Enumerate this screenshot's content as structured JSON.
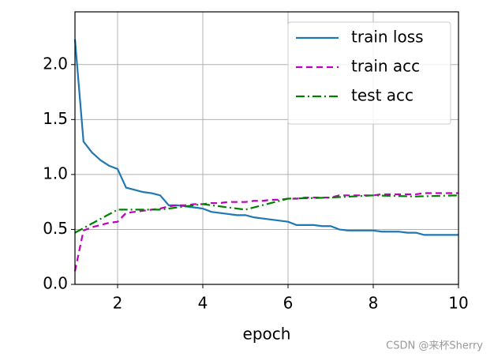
{
  "chart_data": {
    "type": "line",
    "xlabel": "epoch",
    "xlim": [
      1,
      10
    ],
    "ylim": [
      0,
      2.48
    ],
    "xticks": [
      2,
      4,
      6,
      8,
      10
    ],
    "yticks": [
      {
        "value": 0,
        "label": "0.0"
      },
      {
        "value": 0.5,
        "label": "0.5"
      },
      {
        "value": 1,
        "label": "1.0"
      },
      {
        "value": 1.5,
        "label": "1.5"
      },
      {
        "value": 2,
        "label": "2.0"
      }
    ],
    "grid": true,
    "legend": "upper right",
    "series": [
      {
        "name": "train loss",
        "color": "#1f77b4",
        "linestyle": "solid",
        "x": [
          1.0,
          1.2,
          1.4,
          1.6,
          1.8,
          2.0,
          2.2,
          2.4,
          2.6,
          2.8,
          3.0,
          3.2,
          3.4,
          3.6,
          3.8,
          4.0,
          4.2,
          4.4,
          4.6,
          4.8,
          5.0,
          5.2,
          5.4,
          5.6,
          5.8,
          6.0,
          6.2,
          6.4,
          6.6,
          6.8,
          7.0,
          7.2,
          7.4,
          7.6,
          7.8,
          8.0,
          8.2,
          8.4,
          8.6,
          8.8,
          9.0,
          9.2,
          9.4,
          9.6,
          9.8,
          10.0
        ],
        "values": [
          2.23,
          1.3,
          1.2,
          1.13,
          1.08,
          1.05,
          0.88,
          0.86,
          0.84,
          0.83,
          0.81,
          0.72,
          0.72,
          0.71,
          0.7,
          0.69,
          0.66,
          0.65,
          0.64,
          0.63,
          0.63,
          0.61,
          0.6,
          0.59,
          0.58,
          0.57,
          0.54,
          0.54,
          0.54,
          0.53,
          0.53,
          0.5,
          0.49,
          0.49,
          0.49,
          0.49,
          0.48,
          0.48,
          0.48,
          0.47,
          0.47,
          0.45,
          0.45,
          0.45,
          0.45,
          0.45
        ]
      },
      {
        "name": "train acc",
        "color": "#bf00bf",
        "linestyle": "dashed",
        "x": [
          1.0,
          1.2,
          1.4,
          1.6,
          1.8,
          2.0,
          2.2,
          2.4,
          2.6,
          2.8,
          3.0,
          3.2,
          3.4,
          3.6,
          3.8,
          4.0,
          4.2,
          4.4,
          4.6,
          4.8,
          5.0,
          5.2,
          5.4,
          5.6,
          5.8,
          6.0,
          6.2,
          6.4,
          6.6,
          6.8,
          7.0,
          7.2,
          7.4,
          7.6,
          7.8,
          8.0,
          8.2,
          8.4,
          8.6,
          8.8,
          9.0,
          9.2,
          9.4,
          9.6,
          9.8,
          10.0
        ],
        "values": [
          0.12,
          0.49,
          0.52,
          0.54,
          0.56,
          0.57,
          0.65,
          0.66,
          0.67,
          0.68,
          0.69,
          0.71,
          0.72,
          0.72,
          0.73,
          0.73,
          0.74,
          0.74,
          0.75,
          0.75,
          0.75,
          0.76,
          0.76,
          0.77,
          0.77,
          0.78,
          0.78,
          0.79,
          0.79,
          0.79,
          0.79,
          0.81,
          0.81,
          0.81,
          0.81,
          0.81,
          0.82,
          0.82,
          0.82,
          0.82,
          0.82,
          0.83,
          0.83,
          0.83,
          0.83,
          0.83
        ]
      },
      {
        "name": "test acc",
        "color": "#008000",
        "linestyle": "dashdot",
        "x": [
          1,
          2,
          3,
          4,
          5,
          6,
          7,
          8,
          9,
          10
        ],
        "values": [
          0.47,
          0.68,
          0.68,
          0.73,
          0.68,
          0.78,
          0.79,
          0.81,
          0.8,
          0.81
        ]
      }
    ]
  },
  "watermark": "CSDN @来杯Sherry"
}
